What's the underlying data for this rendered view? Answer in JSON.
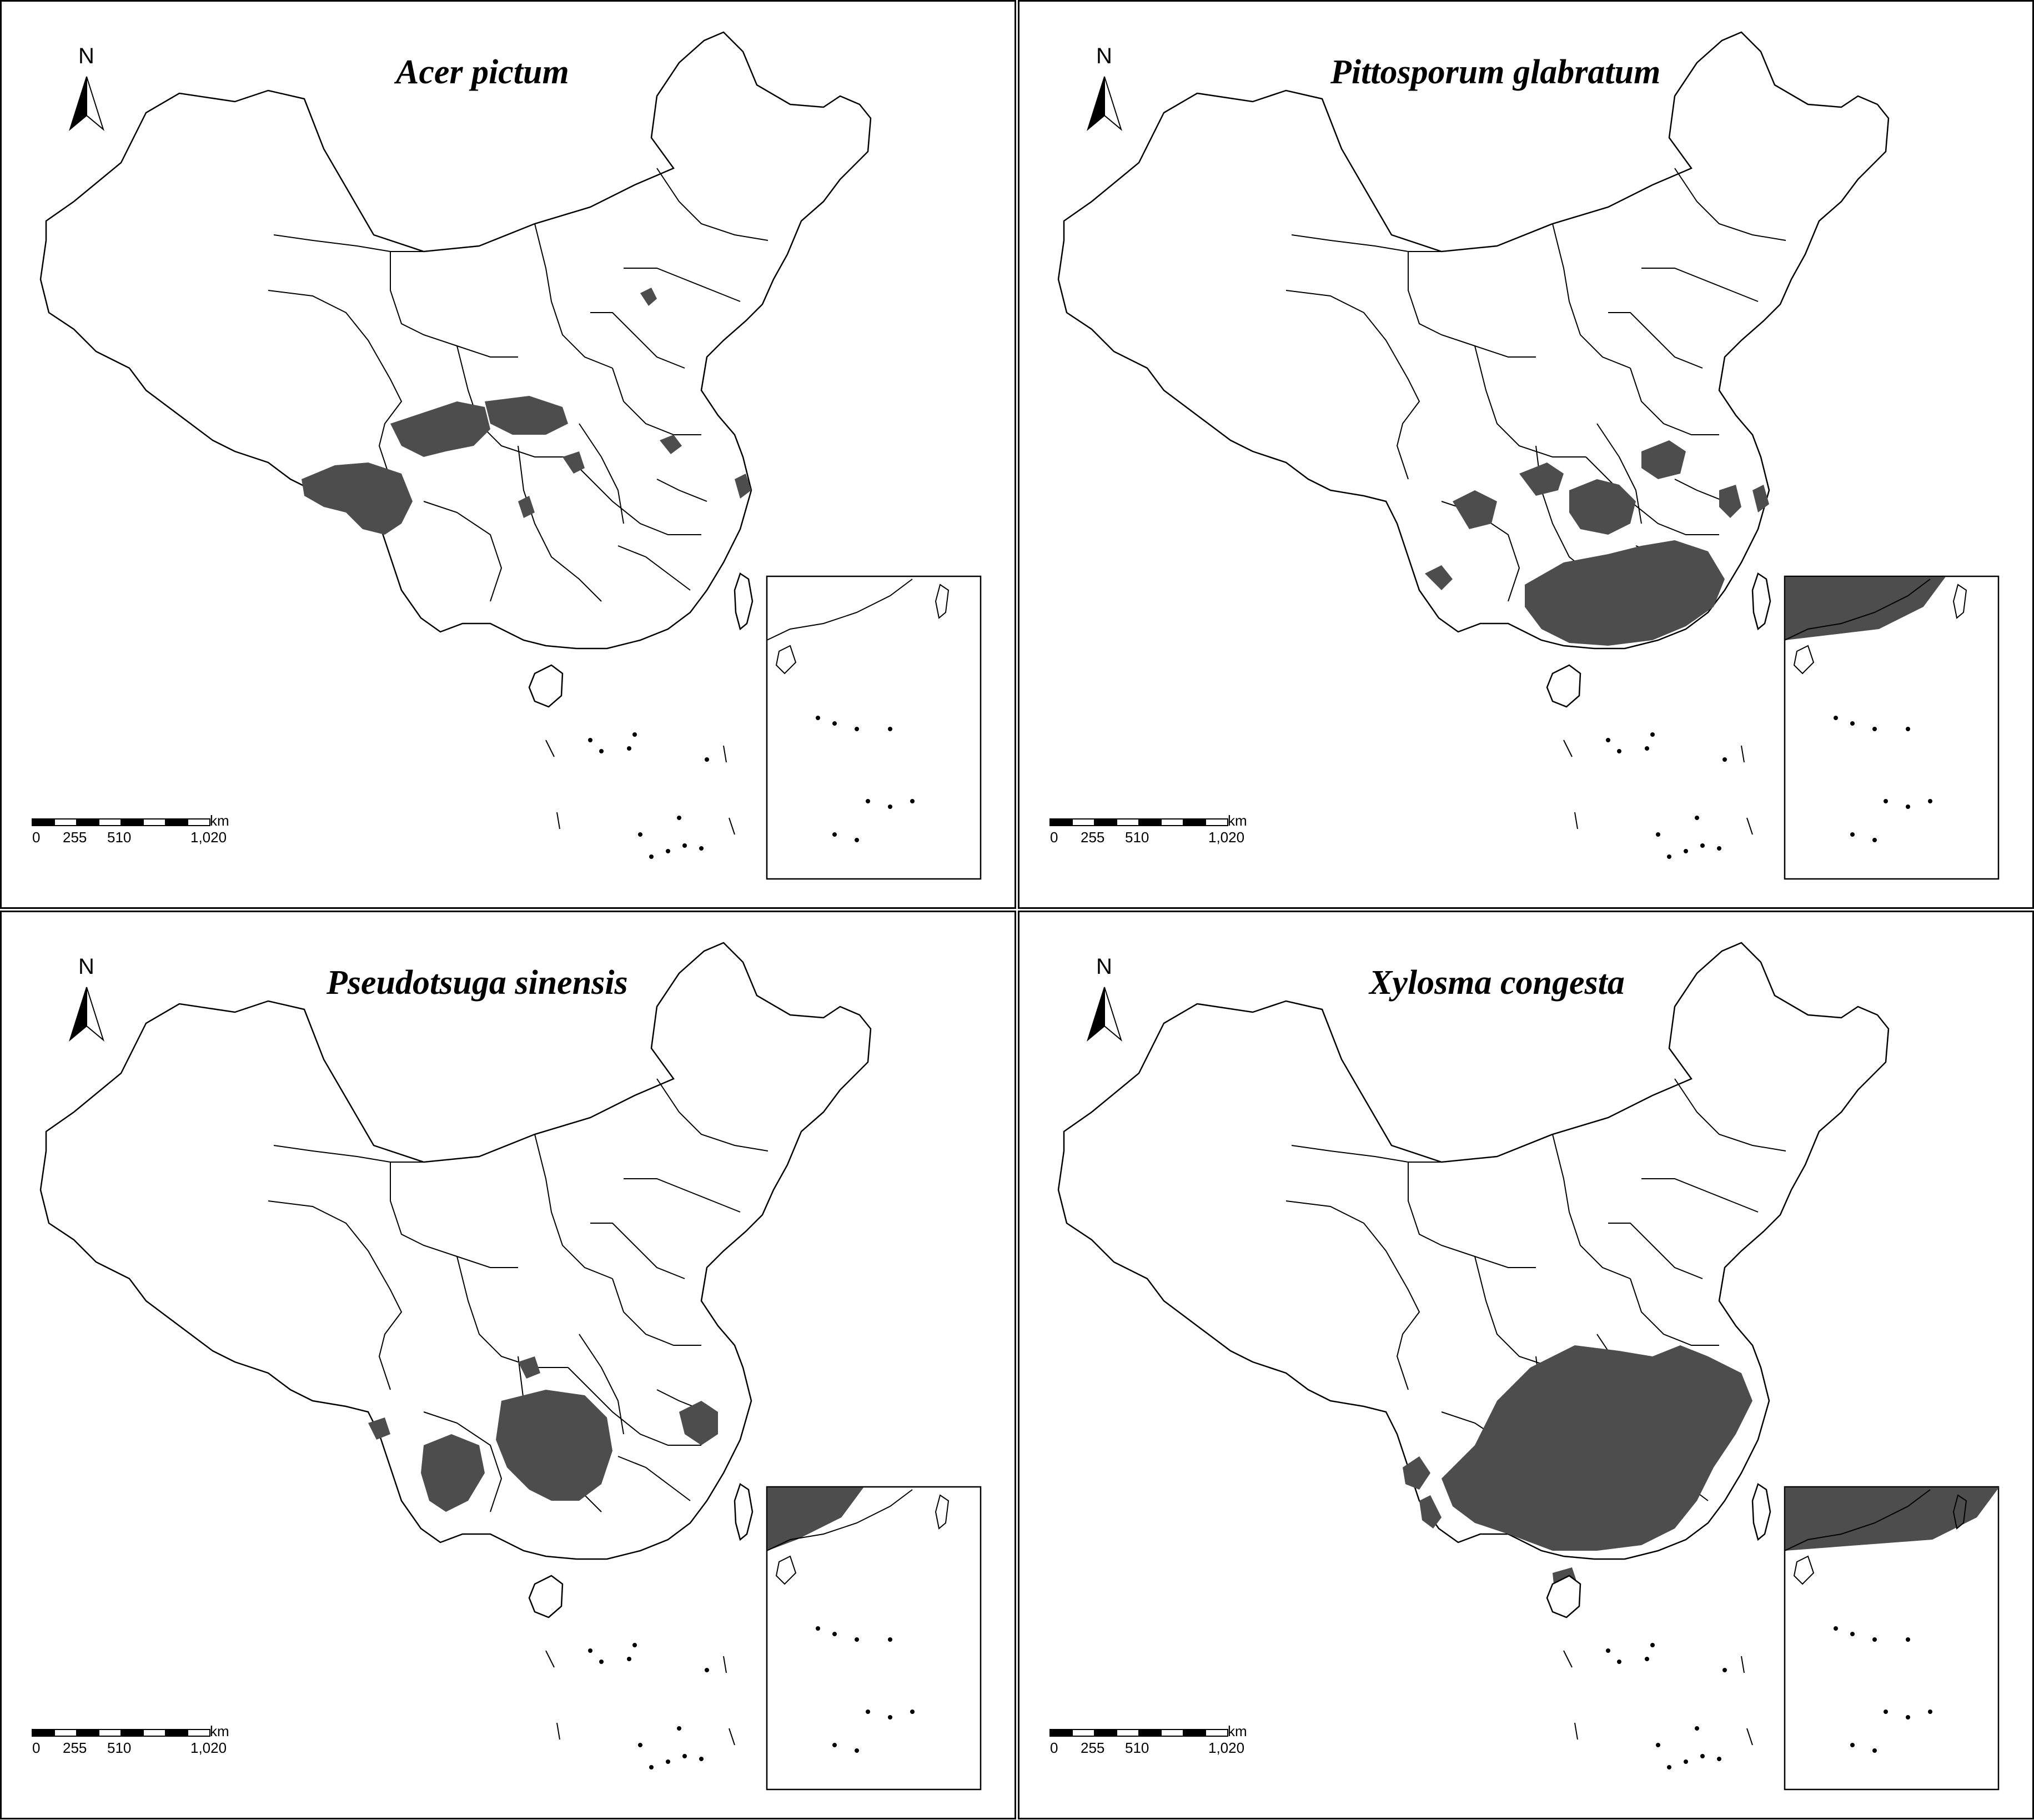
{
  "figure": {
    "panels": [
      {
        "title": "Acer pictum",
        "distribution_extent": "narrow"
      },
      {
        "title": "Pittosporum glabratum",
        "distribution_extent": "broad"
      },
      {
        "title": "Pseudotsuga sinensis",
        "distribution_extent": "medium"
      },
      {
        "title": "Xylosma congesta",
        "distribution_extent": "very broad"
      }
    ],
    "north_arrow_label": "N",
    "scale_bar": {
      "labels": [
        "0",
        "255",
        "510",
        "1,020"
      ],
      "unit": "km"
    },
    "colors": {
      "distribution_fill": "#4d4d4d",
      "outline": "#000000",
      "background": "#ffffff"
    },
    "icons": [
      "north-arrow-icon",
      "scale-bar"
    ]
  }
}
